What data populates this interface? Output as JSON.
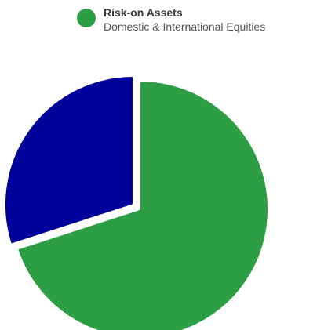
{
  "legend": {
    "items": [
      {
        "title": "Risk-on Assets",
        "subtitle": "Domestic & International Equities",
        "color": "#2E9E45",
        "icon": "circle-swatch-icon"
      }
    ]
  },
  "chart_data": {
    "type": "pie",
    "title": "",
    "series": [
      {
        "name": "Risk-on Assets",
        "values": [
          70,
          30
        ],
        "colors": [
          "#2E9E45",
          "#00009A"
        ]
      }
    ],
    "categories": [
      "Risk-on Assets",
      ""
    ],
    "start_angle_deg": 0,
    "direction": "clockwise",
    "exploded": true,
    "legend_position": "top"
  }
}
